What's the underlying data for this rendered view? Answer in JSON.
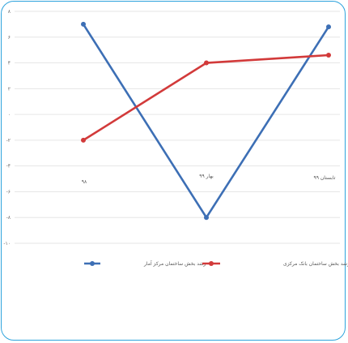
{
  "chart_data": {
    "type": "line",
    "title": "",
    "xlabel": "",
    "ylabel": "",
    "categories": [
      "۹۸",
      "بهار ۹۹",
      "تابستان ۹۹"
    ],
    "y_ticks": [
      "۸",
      "۶",
      "۴",
      "۲",
      "۰",
      "-۲",
      "-۴",
      "-۶",
      "-۸",
      "-۱۰"
    ],
    "ylim": [
      -10,
      8
    ],
    "grid": true,
    "legend_position": "bottom",
    "series": [
      {
        "name": "رشد بخش ساختمان مرکز آمار",
        "color": "#3d6fb5",
        "values": [
          7,
          -8,
          6.8
        ]
      },
      {
        "name": "رشد بخش ساختمان بانک مرکزی",
        "color": "#d23a3a",
        "values": [
          -2,
          4,
          4.6
        ]
      }
    ]
  }
}
